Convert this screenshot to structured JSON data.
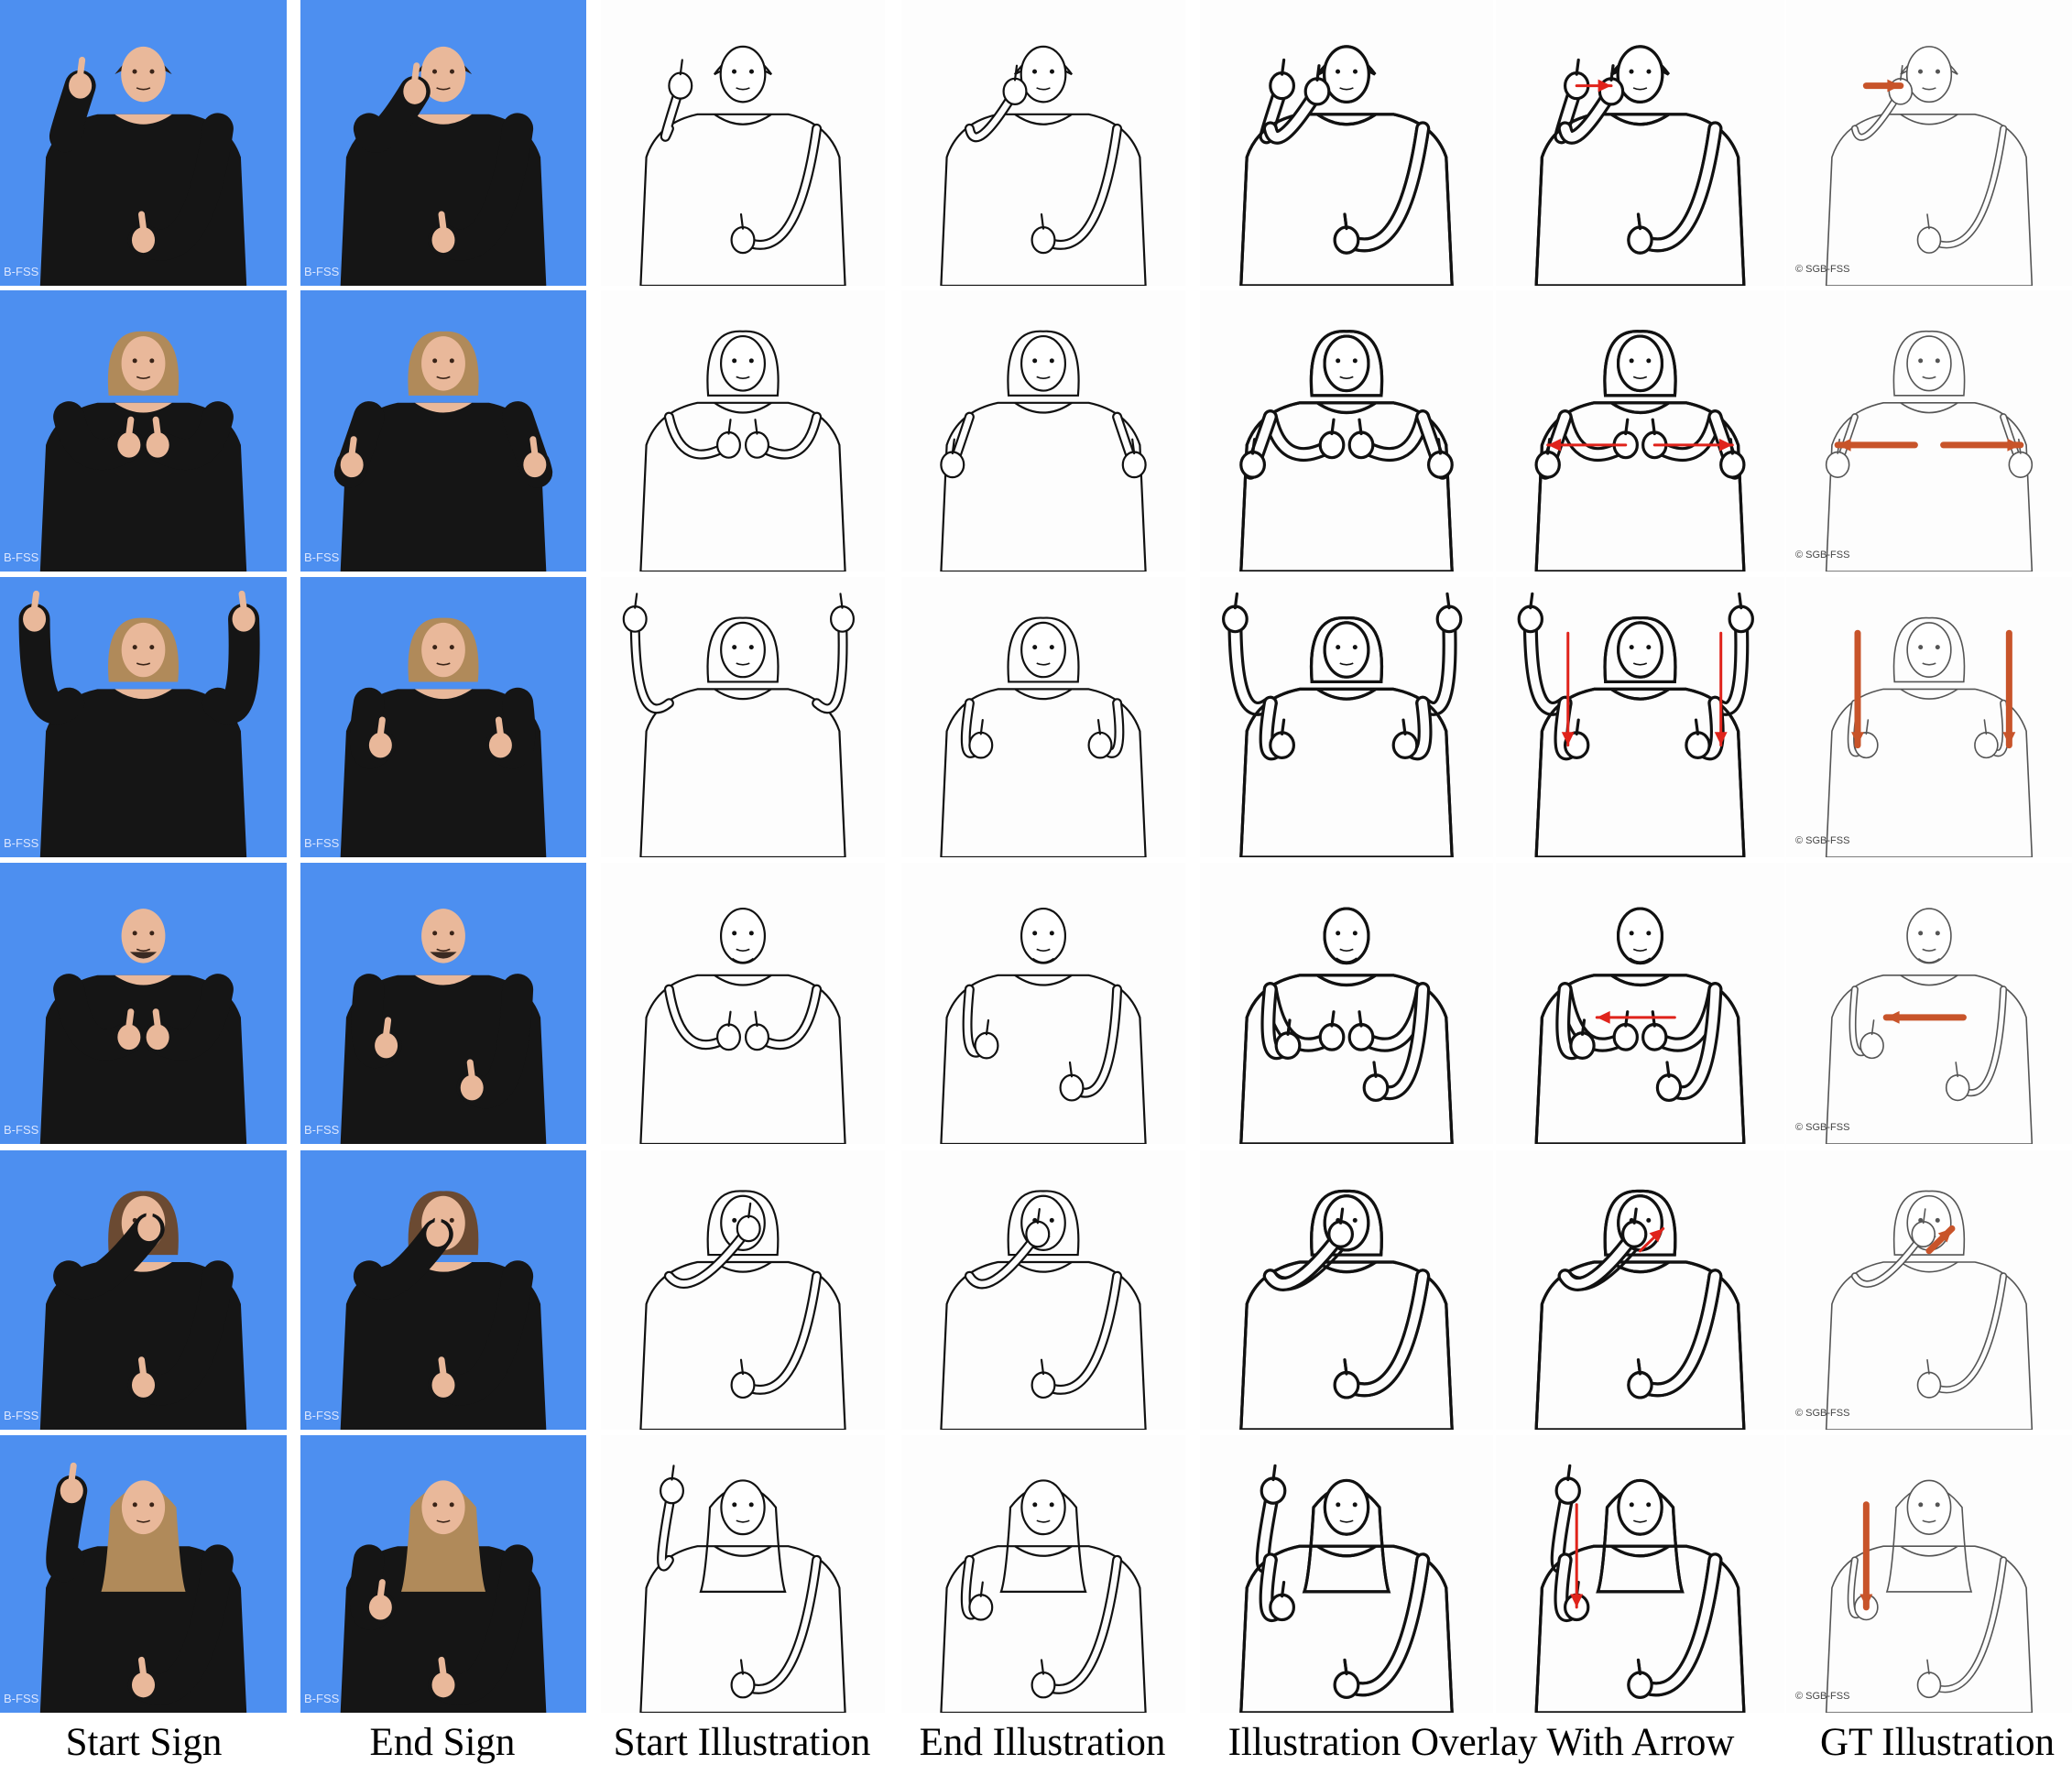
{
  "figure": {
    "columns": [
      {
        "id": "start-sign",
        "label": "Start Sign",
        "kind": "photo"
      },
      {
        "id": "end-sign",
        "label": "End Sign",
        "kind": "photo"
      },
      {
        "id": "start-illustration",
        "label": "Start Illustration",
        "kind": "drawing"
      },
      {
        "id": "end-illustration",
        "label": "End Illustration",
        "kind": "drawing"
      },
      {
        "id": "overlay",
        "label": "Illustration Overlay With Arrow",
        "kind": "overlay"
      },
      {
        "id": "gt",
        "label": "GT Illustration",
        "kind": "gt"
      }
    ],
    "rows": [
      {
        "signer": "woman-short-hair",
        "start": {
          "l": [
            0.28,
            0.3
          ],
          "r": [
            0.5,
            0.84
          ]
        },
        "end": {
          "l": [
            0.4,
            0.32
          ],
          "r": [
            0.5,
            0.84
          ]
        },
        "arrow": [
          [
            0.28,
            0.3
          ],
          [
            0.4,
            0.3
          ]
        ],
        "hair": "short"
      },
      {
        "signer": "woman-bob",
        "start": {
          "l": [
            0.45,
            0.55
          ],
          "r": [
            0.55,
            0.55
          ]
        },
        "end": {
          "l": [
            0.18,
            0.62
          ],
          "r": [
            0.82,
            0.62
          ]
        },
        "arrow": [
          [
            0.45,
            0.55
          ],
          [
            0.18,
            0.55
          ]
        ],
        "arrow2": [
          [
            0.55,
            0.55
          ],
          [
            0.82,
            0.55
          ]
        ],
        "hair": "bob"
      },
      {
        "signer": "woman-bob-2",
        "start": {
          "l": [
            0.12,
            0.15
          ],
          "r": [
            0.85,
            0.15
          ]
        },
        "end": {
          "l": [
            0.28,
            0.6
          ],
          "r": [
            0.7,
            0.6
          ]
        },
        "arrow": [
          [
            0.25,
            0.2
          ],
          [
            0.25,
            0.6
          ]
        ],
        "arrow2": [
          [
            0.78,
            0.2
          ],
          [
            0.78,
            0.6
          ]
        ],
        "hair": "bob"
      },
      {
        "signer": "man-bald",
        "start": {
          "l": [
            0.45,
            0.62
          ],
          "r": [
            0.55,
            0.62
          ]
        },
        "end": {
          "l": [
            0.3,
            0.65
          ],
          "r": [
            0.6,
            0.8
          ]
        },
        "arrow": [
          [
            0.62,
            0.55
          ],
          [
            0.35,
            0.55
          ]
        ],
        "hair": "bald"
      },
      {
        "signer": "woman-curly",
        "start": {
          "l": [
            0.52,
            0.28
          ],
          "r": [
            0.5,
            0.84
          ]
        },
        "end": {
          "l": [
            0.48,
            0.3
          ],
          "r": [
            0.5,
            0.84
          ]
        },
        "arrow": [
          [
            0.5,
            0.36
          ],
          [
            0.58,
            0.28
          ]
        ],
        "hair": "curly"
      },
      {
        "signer": "woman-long-hair",
        "start": {
          "l": [
            0.25,
            0.2
          ],
          "r": [
            0.5,
            0.9
          ]
        },
        "end": {
          "l": [
            0.28,
            0.62
          ],
          "r": [
            0.5,
            0.9
          ]
        },
        "arrow": [
          [
            0.28,
            0.25
          ],
          [
            0.28,
            0.62
          ]
        ],
        "hair": "long"
      }
    ],
    "watermarks": {
      "photo": "B-FSS",
      "gt": "© SGB-FSS"
    }
  }
}
